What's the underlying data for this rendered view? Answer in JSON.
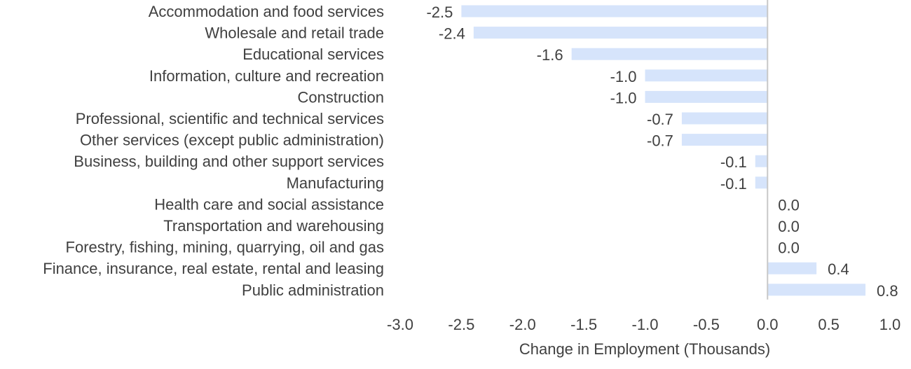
{
  "chart_data": {
    "type": "bar",
    "orientation": "horizontal",
    "categories": [
      "Accommodation and food services",
      "Wholesale and retail trade",
      "Educational services",
      "Information, culture and recreation",
      "Construction",
      "Professional, scientific and technical services",
      "Other services (except public administration)",
      "Business, building and other support services",
      "Manufacturing",
      "Health care and social assistance",
      "Transportation and warehousing",
      "Forestry, fishing, mining, quarrying, oil and gas",
      "Finance, insurance, real estate, rental and leasing",
      "Public administration"
    ],
    "values": [
      -2.5,
      -2.4,
      -1.6,
      -1.0,
      -1.0,
      -0.7,
      -0.7,
      -0.1,
      -0.1,
      0.0,
      0.0,
      0.0,
      0.4,
      0.8
    ],
    "value_labels": [
      "-2.5",
      "-2.4",
      "-1.6",
      "-1.0",
      "-1.0",
      "-0.7",
      "-0.7",
      "-0.1",
      "-0.1",
      "0.0",
      "0.0",
      "0.0",
      "0.4",
      "0.8"
    ],
    "title": "",
    "xlabel": "Change in Employment (Thousands)",
    "ylabel": "",
    "xlim": [
      -3.0,
      1.0
    ],
    "xticks": [
      -3.0,
      -2.5,
      -2.0,
      -1.5,
      -1.0,
      -0.5,
      0.0,
      0.5,
      1.0
    ],
    "xtick_labels": [
      "-3.0",
      "-2.5",
      "-2.0",
      "-1.5",
      "-1.0",
      "-0.5",
      "0.0",
      "0.5",
      "1.0"
    ],
    "grid": false,
    "legend": "none",
    "colors": {
      "bar": "#d6e4fb",
      "zero_axis": "#c8c8c8",
      "text": "#404040"
    }
  }
}
